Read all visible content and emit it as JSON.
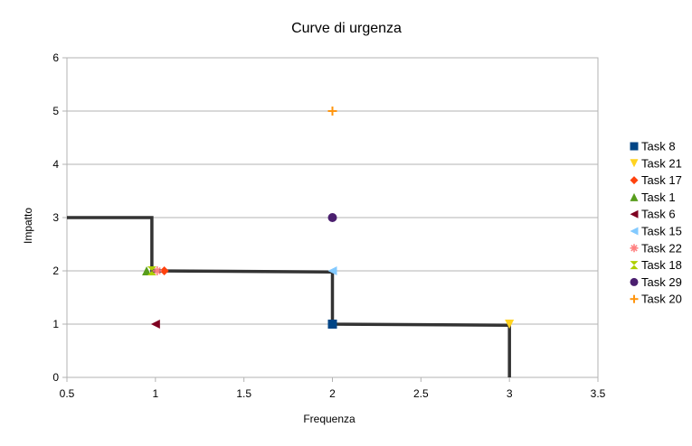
{
  "chart_data": {
    "type": "scatter",
    "title": "Curve di urgenza",
    "xlabel": "Frequenza",
    "ylabel": "Impatto",
    "xlim": [
      0.5,
      3.5
    ],
    "ylim": [
      0,
      6
    ],
    "xticks": [
      "0.5",
      "1",
      "1.5",
      "2",
      "2.5",
      "3",
      "3.5"
    ],
    "yticks": [
      "0",
      "1",
      "2",
      "3",
      "4",
      "5",
      "6"
    ],
    "grid": "horizontal",
    "legend_position": "right",
    "series": [
      {
        "name": "Task 8",
        "marker": "square",
        "color": "#004586",
        "points": [
          [
            2,
            1
          ]
        ]
      },
      {
        "name": "Task 21",
        "marker": "triangle-down",
        "color": "#ffd320",
        "points": [
          [
            3,
            1
          ]
        ]
      },
      {
        "name": "Task 17",
        "marker": "diamond",
        "color": "#ff420e",
        "points": [
          [
            1.05,
            2
          ]
        ]
      },
      {
        "name": "Task 1",
        "marker": "triangle-up",
        "color": "#579d1c",
        "points": [
          [
            0.95,
            2
          ]
        ]
      },
      {
        "name": "Task 6",
        "marker": "triangle-left",
        "color": "#7e0021",
        "points": [
          [
            1,
            1
          ]
        ]
      },
      {
        "name": "Task 15",
        "marker": "triangle-left",
        "color": "#83caff",
        "points": [
          [
            2,
            2
          ]
        ]
      },
      {
        "name": "Task 22",
        "marker": "asterisk",
        "color": "#ff8080",
        "points": [
          [
            1.01,
            2
          ]
        ]
      },
      {
        "name": "Task 18",
        "marker": "bowtie",
        "color": "#aecf00",
        "points": [
          [
            0.98,
            2
          ]
        ]
      },
      {
        "name": "Task 29",
        "marker": "circle",
        "color": "#4b1f6f",
        "points": [
          [
            2,
            3
          ]
        ]
      },
      {
        "name": "Task 20",
        "marker": "plus",
        "color": "#ff950e",
        "points": [
          [
            2,
            5
          ]
        ]
      }
    ],
    "curve": {
      "color": "#333333",
      "points": [
        [
          0.5,
          3
        ],
        [
          0.98,
          3
        ],
        [
          0.98,
          2
        ],
        [
          2,
          1.98
        ],
        [
          2,
          1
        ],
        [
          3,
          0.98
        ],
        [
          3,
          0
        ]
      ]
    }
  }
}
